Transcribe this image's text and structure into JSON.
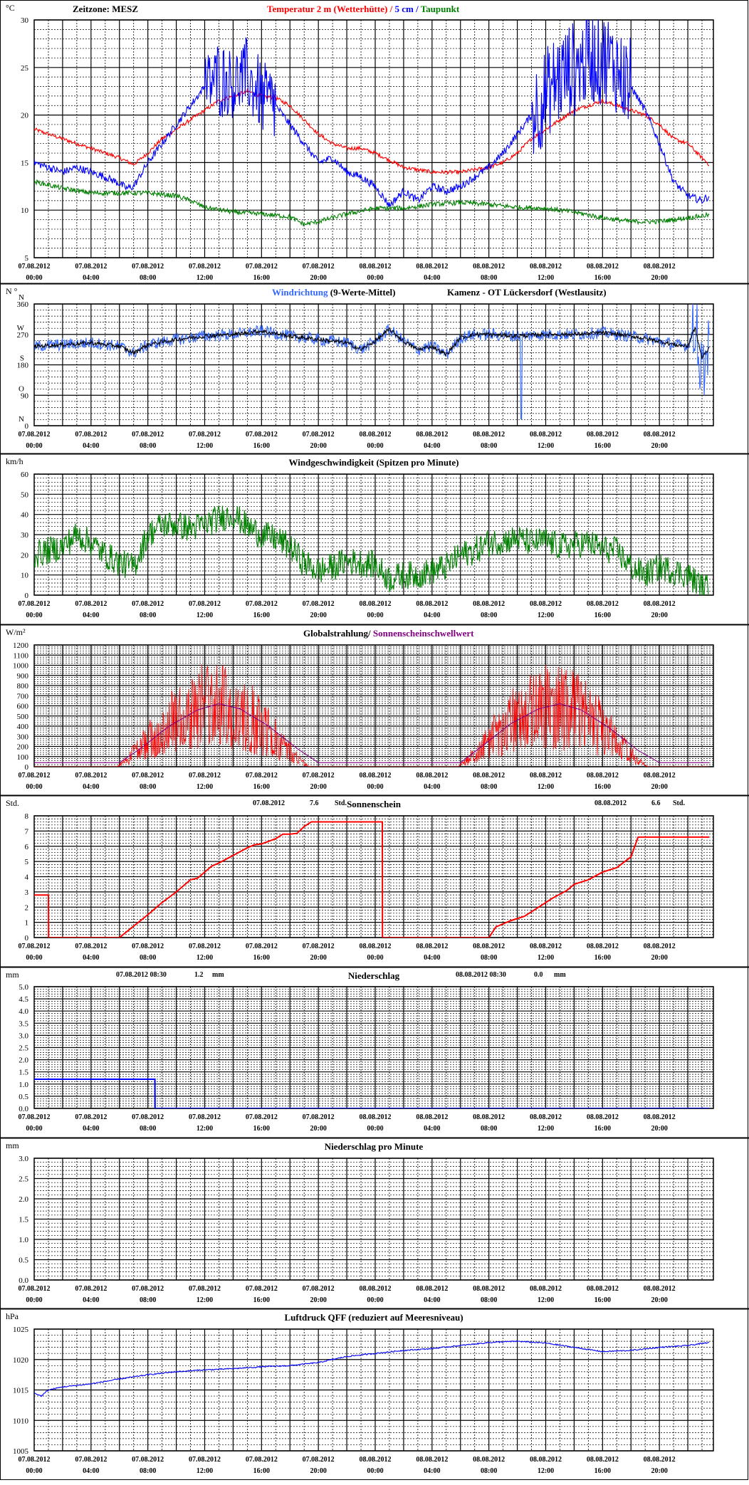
{
  "x_ticks": [
    {
      "date": "07.08.2012",
      "time": "00:00"
    },
    {
      "date": "07.08.2012",
      "time": "04:00"
    },
    {
      "date": "07.08.2012",
      "time": "08:00"
    },
    {
      "date": "07.08.2012",
      "time": "12:00"
    },
    {
      "date": "07.08.2012",
      "time": "16:00"
    },
    {
      "date": "07.08.2012",
      "time": "20:00"
    },
    {
      "date": "08.08.2012",
      "time": "00:00"
    },
    {
      "date": "08.08.2012",
      "time": "04:00"
    },
    {
      "date": "08.08.2012",
      "time": "08:00"
    },
    {
      "date": "08.08.2012",
      "time": "12:00"
    },
    {
      "date": "08.08.2012",
      "time": "16:00"
    },
    {
      "date": "08.08.2012",
      "time": "20:00"
    }
  ],
  "chart_data": [
    {
      "type": "line",
      "id": "temperature",
      "unit": "°C",
      "timezone_label": "Zeitzone: MESZ",
      "title_parts": [
        {
          "text": "Temperatur 2 m (Wetterhütte)",
          "color": "#ff0000"
        },
        {
          "text": " / ",
          "color": "#ff0000"
        },
        {
          "text": "5 cm",
          "color": "#0000ff"
        },
        {
          "text": " / ",
          "color": "#0000ff"
        },
        {
          "text": "Taupunkt",
          "color": "#008000"
        }
      ],
      "ylim": [
        5,
        30
      ],
      "yticks": [
        5,
        10,
        15,
        20,
        25,
        30
      ],
      "grid": true,
      "series": [
        {
          "name": "Temperatur 2 m (Wetterhütte)",
          "color": "#ff0000",
          "noise": 0.2,
          "x": [
            0,
            2,
            4,
            6,
            7,
            8,
            9,
            10,
            11,
            12,
            13,
            14,
            15,
            16,
            17,
            18,
            19,
            20,
            21,
            22,
            23,
            24,
            26,
            28,
            30,
            32,
            33,
            34,
            35,
            36,
            37,
            38,
            39,
            40,
            41,
            42,
            43,
            44,
            45,
            46,
            47,
            47.5
          ],
          "y": [
            18.5,
            17.5,
            16.5,
            15.5,
            14.8,
            16,
            17.5,
            18.5,
            19.5,
            20.5,
            21.5,
            22,
            22.5,
            22,
            21.8,
            21,
            19.5,
            18,
            17,
            16.5,
            16.5,
            16,
            14.5,
            14,
            14,
            14.5,
            15,
            16,
            17.5,
            18.5,
            19.5,
            20.5,
            21,
            21.5,
            21,
            20.5,
            20,
            19,
            17.5,
            17,
            15.5,
            14.8
          ]
        },
        {
          "name": "5 cm",
          "color": "#0000ff",
          "noise": 0.4,
          "x": [
            0,
            1,
            2,
            3,
            4,
            5,
            6,
            6.5,
            7,
            8,
            9,
            10,
            11,
            12,
            13,
            14,
            15,
            16,
            17,
            18,
            19,
            20,
            21,
            22,
            23,
            24,
            25,
            26,
            27,
            28,
            29,
            30,
            31,
            32,
            33,
            34,
            35,
            36,
            37,
            38,
            39,
            40,
            41,
            42,
            43,
            44,
            45,
            46,
            47,
            47.5
          ],
          "y": [
            15,
            14.5,
            14,
            14.5,
            14,
            13.5,
            12.8,
            12.3,
            12.5,
            15,
            17,
            19,
            21,
            23,
            24,
            23.5,
            24,
            22,
            21,
            19,
            17,
            15,
            15.5,
            14,
            13.5,
            12.5,
            10.5,
            12,
            11,
            12.5,
            12,
            12.5,
            13.5,
            14.5,
            16,
            18,
            20,
            22,
            24,
            25,
            26,
            26,
            25,
            23,
            20.5,
            17,
            13,
            11.5,
            11,
            11.5
          ],
          "spiky": [
            [
              12,
              17,
              4
            ],
            [
              35,
              42,
              5
            ]
          ]
        },
        {
          "name": "Taupunkt",
          "color": "#008000",
          "noise": 0.25,
          "x": [
            0,
            2,
            4,
            6,
            8,
            10,
            11,
            12,
            14,
            16,
            18,
            19,
            20,
            22,
            24,
            26,
            28,
            30,
            32,
            34,
            36,
            38,
            40,
            42,
            44,
            46,
            47.5
          ],
          "y": [
            13,
            12.3,
            11.8,
            11.8,
            11.8,
            11.5,
            11,
            10.3,
            9.8,
            9.6,
            9.3,
            8.5,
            8.8,
            9.6,
            10.2,
            10.2,
            10.6,
            10.8,
            10.6,
            10.3,
            10.2,
            9.8,
            9.2,
            8.8,
            8.8,
            9.2,
            9.5
          ]
        }
      ]
    },
    {
      "type": "line",
      "id": "wind_direction",
      "unit": "N °",
      "title_parts": [
        {
          "text": "Windrichtung",
          "color": "#3366ff"
        },
        {
          "text": " (9-Werte-Mittel)",
          "color": "#000000"
        }
      ],
      "station": "Kamenz - OT Lückersdorf (Westlausitz)",
      "ylim": [
        0,
        360
      ],
      "yticks": [
        {
          "value": 0,
          "label": "0"
        },
        {
          "value": 90,
          "label": "90"
        },
        {
          "value": 180,
          "label": "180"
        },
        {
          "value": 270,
          "label": "270"
        },
        {
          "value": 360,
          "label": "360"
        }
      ],
      "compass_labels": [
        {
          "value": 0,
          "label": "N"
        },
        {
          "value": 90,
          "label": "O"
        },
        {
          "value": 180,
          "label": "S"
        },
        {
          "value": 270,
          "label": "W"
        },
        {
          "value": 360,
          "label": "N"
        }
      ],
      "grid": true,
      "series": [
        {
          "name": "Windrichtung",
          "color": "#3366ff",
          "noise": 18,
          "x": [
            0,
            2,
            4,
            6,
            7,
            8,
            10,
            12,
            14,
            16,
            18,
            20,
            22,
            23,
            24,
            25,
            26,
            27,
            28,
            29,
            30,
            31,
            32,
            34,
            36,
            38,
            40,
            42,
            44,
            45,
            46,
            46.5,
            47,
            47.5
          ],
          "y": [
            235,
            240,
            245,
            235,
            215,
            240,
            255,
            265,
            270,
            280,
            265,
            255,
            245,
            225,
            250,
            285,
            250,
            225,
            235,
            210,
            260,
            270,
            270,
            265,
            270,
            270,
            275,
            265,
            250,
            240,
            235,
            300,
            150,
            220
          ]
        },
        {
          "name": "9-Werte-Mittel",
          "color": "#000000",
          "noise": 6,
          "x": [
            0,
            2,
            4,
            6,
            7,
            8,
            10,
            12,
            14,
            16,
            18,
            20,
            22,
            23,
            24,
            25,
            26,
            27,
            28,
            29,
            30,
            31,
            32,
            34,
            36,
            38,
            40,
            42,
            44,
            45,
            46,
            46.5,
            47,
            47.5
          ],
          "y": [
            235,
            240,
            245,
            235,
            215,
            240,
            255,
            265,
            270,
            280,
            265,
            255,
            245,
            225,
            250,
            285,
            250,
            225,
            235,
            210,
            260,
            270,
            270,
            265,
            270,
            270,
            275,
            265,
            250,
            240,
            235,
            290,
            200,
            230
          ]
        }
      ]
    },
    {
      "type": "line",
      "id": "wind_speed",
      "unit": "km/h",
      "title": "Windgeschwindigkeit (Spitzen pro Minute)",
      "ylim": [
        0,
        60
      ],
      "yticks": [
        0,
        10,
        20,
        30,
        40,
        50,
        60
      ],
      "grid": true,
      "series": [
        {
          "name": "Windgeschwindigkeit",
          "color": "#008000",
          "noise": 7,
          "x": [
            0,
            1,
            2,
            3,
            4,
            5,
            6,
            7,
            8,
            9,
            10,
            11,
            12,
            13,
            14,
            15,
            16,
            17,
            18,
            19,
            20,
            21,
            22,
            23,
            24,
            25,
            26,
            27,
            28,
            29,
            30,
            31,
            32,
            33,
            34,
            35,
            36,
            37,
            38,
            39,
            40,
            41,
            42,
            43,
            44,
            45,
            46,
            47,
            47.5
          ],
          "y": [
            20,
            22,
            24,
            30,
            26,
            20,
            16,
            14,
            30,
            35,
            35,
            33,
            35,
            38,
            40,
            34,
            30,
            28,
            24,
            16,
            12,
            14,
            17,
            16,
            15,
            8,
            10,
            10,
            12,
            14,
            20,
            22,
            26,
            27,
            28,
            26,
            27,
            24,
            25,
            26,
            23,
            22,
            14,
            10,
            14,
            12,
            10,
            4,
            3
          ]
        }
      ]
    },
    {
      "type": "line",
      "id": "global_radiation",
      "unit": "W/m²",
      "title_parts": [
        {
          "text": "Globalstrahlung/ ",
          "color": "#000000"
        },
        {
          "text": "Sonnenscheinschwellwert",
          "color": "#800080"
        }
      ],
      "ylim": [
        0,
        1200
      ],
      "yticks": [
        0,
        100,
        200,
        300,
        400,
        500,
        600,
        700,
        800,
        900,
        1000,
        1100,
        1200
      ],
      "grid": true,
      "series": [
        {
          "name": "Globalstrahlung",
          "color": "#ff0000",
          "days": [
            {
              "start": 5.8,
              "end": 19.4,
              "peak": 1050
            },
            {
              "start": 29.8,
              "end": 43.2,
              "peak": 1030
            }
          ]
        },
        {
          "name": "Sonnenscheinschwellwert",
          "color": "#800080",
          "x": [
            0,
            6,
            7.5,
            9.5,
            11.5,
            13,
            14.5,
            16.5,
            18.5,
            20,
            30,
            31.5,
            33.5,
            35.5,
            37,
            38.5,
            40.5,
            42.5,
            44,
            47.5
          ],
          "y": [
            40,
            40,
            180,
            400,
            560,
            620,
            570,
            400,
            180,
            40,
            40,
            200,
            420,
            570,
            620,
            560,
            380,
            160,
            40,
            40
          ]
        }
      ]
    },
    {
      "type": "line",
      "id": "sunshine",
      "unit": "Std.",
      "title": "Sonnenschein",
      "day_totals": [
        {
          "date": "07.08.2012",
          "value": "7.6",
          "unit": "Std."
        },
        {
          "date": "08.08.2012",
          "value": "6.6",
          "unit": "Std."
        }
      ],
      "ylim": [
        0,
        8
      ],
      "yticks": [
        0,
        1,
        2,
        3,
        4,
        5,
        6,
        7,
        8
      ],
      "grid": true,
      "series": [
        {
          "name": "Sonnenschein",
          "color": "#ff0000",
          "x": [
            0,
            1,
            1.01,
            6,
            8,
            9,
            10,
            11,
            11.5,
            12.5,
            13,
            14,
            15,
            15.5,
            16,
            17,
            17.5,
            18,
            18.5,
            19,
            19.5,
            20,
            20.01,
            24.5,
            24.51,
            32,
            32.5,
            33.5,
            34.5,
            35.5,
            36.5,
            37.5,
            38,
            39,
            40,
            41,
            42,
            42.5,
            47.5
          ],
          "y": [
            2.8,
            2.8,
            0,
            0,
            1.5,
            2.3,
            3,
            3.8,
            3.9,
            4.7,
            4.9,
            5.4,
            5.9,
            6.1,
            6.15,
            6.5,
            6.8,
            6.8,
            6.85,
            7.3,
            7.6,
            7.6,
            7.6,
            7.6,
            0,
            0,
            0.7,
            1.1,
            1.4,
            2,
            2.6,
            3.1,
            3.5,
            3.8,
            4.3,
            4.6,
            5.3,
            6.6,
            6.6
          ]
        }
      ]
    },
    {
      "type": "line",
      "id": "precipitation",
      "unit": "mm",
      "title": "Niederschlag",
      "day_totals": [
        {
          "date": "07.08.2012 08:30",
          "value": "1.2",
          "unit": "mm"
        },
        {
          "date": "08.08.2012 08:30",
          "value": "0.0",
          "unit": "mm"
        }
      ],
      "ylim": [
        0,
        5
      ],
      "yticks": [
        0,
        0.5,
        1,
        1.5,
        2,
        2.5,
        3,
        3.5,
        4,
        4.5,
        5
      ],
      "ytick_labels": [
        "0.0",
        "0.5",
        "1.0",
        "1.5",
        "2.0",
        "2.5",
        "3.0",
        "3.5",
        "4.0",
        "4.5",
        "5.0"
      ],
      "grid": true,
      "series": [
        {
          "name": "Niederschlag",
          "color": "#0000ff",
          "x": [
            0,
            8.5,
            8.51,
            47.5
          ],
          "y": [
            1.2,
            1.2,
            0,
            0
          ]
        }
      ]
    },
    {
      "type": "line",
      "id": "precipitation_per_minute",
      "unit": "mm",
      "title": "Niederschlag pro Minute",
      "ylim": [
        0,
        3
      ],
      "yticks": [
        0,
        0.5,
        1,
        1.5,
        2,
        2.5,
        3
      ],
      "ytick_labels": [
        "0.0",
        "0.5",
        "1.0",
        "1.5",
        "2.0",
        "2.5",
        "3.0"
      ],
      "grid": true,
      "series": []
    },
    {
      "type": "line",
      "id": "pressure",
      "unit": "hPa",
      "title": "Luftdruck QFF (reduziert auf Meeresniveau)",
      "ylim": [
        1005,
        1025
      ],
      "yticks": [
        1005,
        1010,
        1015,
        1020,
        1025
      ],
      "grid": true,
      "series": [
        {
          "name": "Luftdruck QFF",
          "color": "#0000ff",
          "noise": 0.1,
          "x": [
            0,
            0.5,
            1,
            2,
            4,
            6,
            8,
            10,
            12,
            14,
            16,
            18,
            20,
            22,
            24,
            26,
            28,
            30,
            32,
            34,
            36,
            38,
            40,
            42,
            44,
            46,
            47.5
          ],
          "y": [
            1014.5,
            1014,
            1015,
            1015.5,
            1016,
            1016.8,
            1017.5,
            1018,
            1018.3,
            1018.5,
            1018.8,
            1019,
            1019.5,
            1020.5,
            1021,
            1021.5,
            1021.8,
            1022.3,
            1022.8,
            1023,
            1022.7,
            1022,
            1021.3,
            1021.5,
            1022,
            1022.3,
            1022.8
          ]
        }
      ]
    }
  ]
}
